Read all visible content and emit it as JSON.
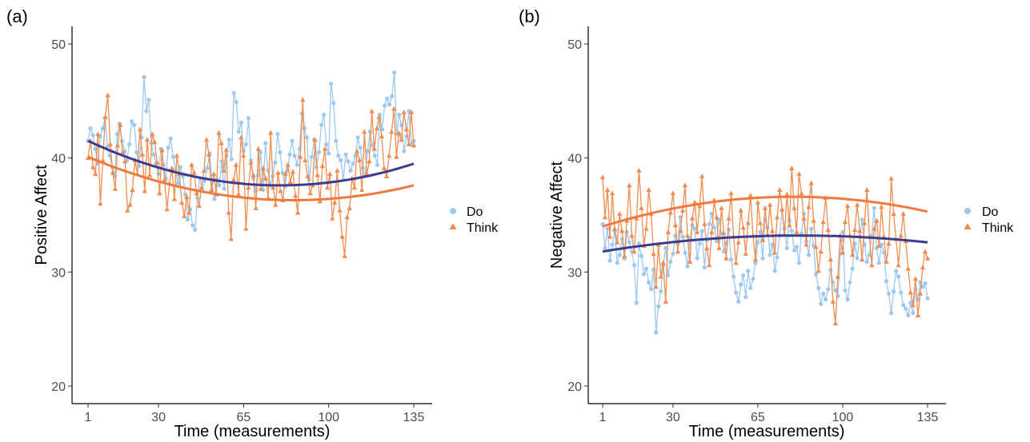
{
  "colors": {
    "do": "#9dc9f0",
    "think": "#f28c4f",
    "trend_do": "#3b3b8f",
    "trend_think": "#f0793e"
  },
  "legend": {
    "do_label": "Do",
    "think_label": "Think"
  },
  "chart_data": [
    {
      "type": "line",
      "tag": "(a)",
      "xlabel": "Time (measurements)",
      "ylabel": "Positive Affect",
      "xlim": [
        1,
        135
      ],
      "ylim": [
        20,
        50
      ],
      "xticks": [
        1,
        30,
        65,
        100,
        135
      ],
      "yticks": [
        20,
        30,
        40,
        50
      ],
      "grid": false,
      "legend_position": "right",
      "series": [
        {
          "name": "Do",
          "marker": "circle",
          "trend": {
            "from": 41.5,
            "min": 37.6,
            "to": 39.5,
            "min_at": 82
          },
          "values": [
            41.5,
            42.6,
            42.0,
            40.8,
            39.5,
            41.9,
            42.6,
            43.5,
            41.0,
            40.2,
            39.2,
            38.4,
            42.1,
            43.0,
            41.5,
            40.6,
            39.8,
            41.2,
            43.2,
            42.9,
            40.5,
            39.3,
            41.8,
            47.1,
            44.1,
            45.1,
            41.3,
            40.3,
            39.5,
            38.6,
            40.8,
            39.4,
            38.2,
            40.9,
            41.7,
            40.1,
            38.9,
            37.8,
            39.2,
            38.4,
            36.8,
            34.6,
            35.5,
            34.1,
            33.7,
            36.5,
            38.2,
            37.2,
            38.0,
            39.1,
            40.4,
            37.9,
            36.4,
            38.1,
            37.6,
            39.7,
            37.3,
            40.2,
            41.6,
            39.9,
            45.7,
            44.9,
            42.3,
            43.1,
            40.6,
            41.2,
            43.5,
            39.8,
            38.2,
            37.1,
            38.5,
            40.5,
            37.2,
            41.3,
            38.9,
            37.6,
            38.4,
            39.6,
            42.1,
            40.5,
            38.7,
            37.5,
            38.9,
            40.3,
            41.5,
            40.2,
            39.4,
            40.8,
            43.9,
            42.6,
            41.8,
            38.1,
            40.1,
            41.6,
            39.2,
            40.5,
            42.9,
            43.8,
            41.2,
            40.4,
            46.5,
            44.8,
            41.5,
            40.2,
            39.8,
            38.1,
            40.3,
            39.7,
            38.9,
            39.5,
            40.2,
            41.8,
            40.9,
            39.1,
            38.5,
            40.6,
            42.3,
            41.1,
            40.2,
            39.4,
            43.8,
            42.5,
            44.6,
            45.2,
            44.7,
            45.4,
            47.5,
            42.1,
            43.8,
            42.9,
            40.6,
            41.9,
            44.1,
            41.2,
            41.5
          ]
        },
        {
          "name": "Think",
          "marker": "triangle",
          "trend": {
            "from": 40.1,
            "min": 36.3,
            "to": 37.6,
            "min_at": 85
          },
          "values": [
            40.0,
            41.5,
            39.2,
            38.6,
            42.1,
            36.0,
            39.8,
            43.6,
            45.5,
            41.2,
            38.7,
            37.3,
            41.1,
            42.9,
            40.5,
            39.7,
            35.4,
            35.9,
            37.2,
            39.8,
            38.6,
            42.5,
            40.3,
            37.1,
            41.6,
            38.5,
            42.1,
            41.4,
            39.6,
            36.9,
            40.7,
            38.1,
            35.5,
            37.8,
            39.1,
            36.4,
            40.2,
            38.6,
            36.1,
            34.9,
            36.6,
            35.2,
            39.4,
            38.7,
            36.9,
            35.8,
            37.4,
            38.9,
            41.6,
            40.3,
            37.2,
            38.6,
            36.8,
            42.2,
            41.3,
            38.9,
            40.7,
            35.2,
            32.9,
            38.1,
            39.4,
            36.8,
            41.8,
            40.2,
            33.8,
            37.4,
            39.6,
            38.5,
            35.6,
            40.8,
            37.3,
            39.1,
            38.2,
            36.5,
            42.2,
            37.4,
            35.9,
            38.7,
            37.1,
            36.3,
            38.6,
            39.4,
            37.9,
            38.8,
            36.7,
            35.2,
            40.1,
            45.1,
            39.8,
            38.4,
            36.9,
            37.6,
            41.6,
            38.5,
            36.2,
            39.3,
            40.8,
            37.4,
            38.6,
            34.7,
            36.1,
            38.9,
            35.4,
            33.1,
            31.4,
            34.8,
            35.6,
            38.2,
            37.4,
            40.6,
            39.8,
            37.2,
            42.3,
            38.6,
            39.7,
            44.1,
            40.8,
            42.6,
            43.6,
            41.9,
            39.1,
            38.4,
            40.2,
            42.3,
            44.3,
            40.1,
            42.2,
            41.6,
            44.0,
            42.5,
            41.2,
            44.0,
            41.1
          ]
        }
      ]
    },
    {
      "type": "line",
      "tag": "(b)",
      "xlabel": "Time (measurements)",
      "ylabel": "Negative Affect",
      "xlim": [
        1,
        135
      ],
      "ylim": [
        20,
        50
      ],
      "xticks": [
        1,
        30,
        65,
        100,
        135
      ],
      "yticks": [
        20,
        30,
        40,
        50
      ],
      "grid": false,
      "legend_position": "right",
      "series": [
        {
          "name": "Do",
          "marker": "circle",
          "trend": {
            "from": 31.8,
            "max": 33.2,
            "to": 32.6,
            "max_at": 85
          },
          "values": [
            34.2,
            32.1,
            33.8,
            31.0,
            32.4,
            33.6,
            30.8,
            31.5,
            32.9,
            31.2,
            33.5,
            32.6,
            31.8,
            30.6,
            27.3,
            32.5,
            31.4,
            29.8,
            30.3,
            29.1,
            28.5,
            30.2,
            24.7,
            27.0,
            28.3,
            30.6,
            32.1,
            29.7,
            30.9,
            31.6,
            33.2,
            32.5,
            34.8,
            33.1,
            31.7,
            30.5,
            32.9,
            34.1,
            33.8,
            31.2,
            32.5,
            33.6,
            30.4,
            32.8,
            34.2,
            35.1,
            33.9,
            32.7,
            34.6,
            33.4,
            31.8,
            32.5,
            33.7,
            31.1,
            29.6,
            28.2,
            27.4,
            28.9,
            29.7,
            27.8,
            30.1,
            28.6,
            29.4,
            30.8,
            32.6,
            33.5,
            31.2,
            34.6,
            33.9,
            31.5,
            32.4,
            30.1,
            31.3,
            33.2,
            35.4,
            33.8,
            32.1,
            34.5,
            33.6,
            31.9,
            32.2,
            30.8,
            33.4,
            35.1,
            32.7,
            31.5,
            33.8,
            32.3,
            29.8,
            28.6,
            27.2,
            28.1,
            27.6,
            28.5,
            30.2,
            29.1,
            28.4,
            27.9,
            31.6,
            33.5,
            28.4,
            27.6,
            29.1,
            30.3,
            32.5,
            31.2,
            33.1,
            34.6,
            32.4,
            30.9,
            31.5,
            33.2,
            35.6,
            32.1,
            30.8,
            32.4,
            31.7,
            29.2,
            28.1,
            26.4,
            28.3,
            30.1,
            29.6,
            28.2,
            27.1,
            26.8,
            26.2,
            27.3,
            26.4,
            28.5,
            27.6,
            29.1,
            28.7,
            29.0,
            27.7
          ]
        },
        {
          "name": "Think",
          "marker": "triangle",
          "trend": {
            "from": 34.0,
            "max": 36.6,
            "to": 35.3,
            "max_at": 78
          },
          "values": [
            38.3,
            34.8,
            37.2,
            33.1,
            36.9,
            33.8,
            32.6,
            35.1,
            33.6,
            31.4,
            34.5,
            37.6,
            33.2,
            31.8,
            34.7,
            38.9,
            35.6,
            32.3,
            33.8,
            37.2,
            35.1,
            31.6,
            28.7,
            32.4,
            29.6,
            30.8,
            27.4,
            33.5,
            35.2,
            36.9,
            34.1,
            31.8,
            33.6,
            35.4,
            37.6,
            33.2,
            30.9,
            34.7,
            36.1,
            33.5,
            35.8,
            38.4,
            34.2,
            32.1,
            30.6,
            33.5,
            36.3,
            34.8,
            32.1,
            35.6,
            33.4,
            31.2,
            34.7,
            36.9,
            33.1,
            30.8,
            32.6,
            35.4,
            33.9,
            31.6,
            34.3,
            36.7,
            33.2,
            31.1,
            36.1,
            34.3,
            32.8,
            35.6,
            33.3,
            35.9,
            33.6,
            31.7,
            34.8,
            37.2,
            35.5,
            33.3,
            36.8,
            34.1,
            39.1,
            35.6,
            33.5,
            38.6,
            36.9,
            34.7,
            32.4,
            35.7,
            37.8,
            34.5,
            32.2,
            30.1,
            31.8,
            34.4,
            36.5,
            33.7,
            31.1,
            27.4,
            25.5,
            29.6,
            33.2,
            31.7,
            34.4,
            35.8,
            33.2,
            31.5,
            33.7,
            35.9,
            33.6,
            31.1,
            34.3,
            37.2,
            33.1,
            30.6,
            33.8,
            34.5,
            32.3,
            35.7,
            33.1,
            30.9,
            32.5,
            38.2,
            35.1,
            32.9,
            30.6,
            33.2,
            35.1,
            32.7,
            30.3,
            28.2,
            27.1,
            29.4,
            26.2,
            28.1,
            30.4,
            31.8,
            31.2
          ]
        }
      ]
    }
  ]
}
